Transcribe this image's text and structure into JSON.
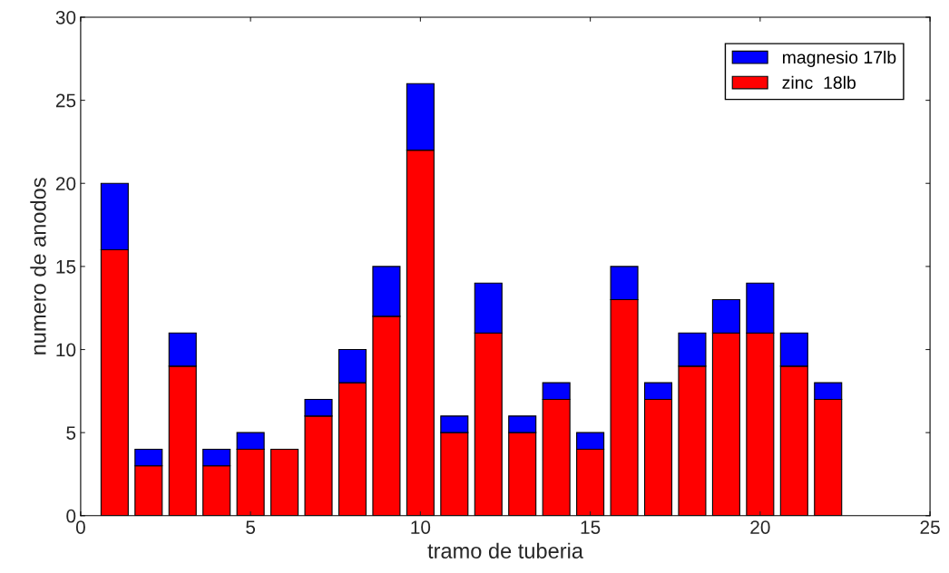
{
  "chart_data": {
    "type": "bar",
    "stacked": true,
    "xlabel": "tramo de tuberia",
    "ylabel": "numero de anodos",
    "x": [
      1,
      2,
      3,
      4,
      5,
      6,
      7,
      8,
      9,
      10,
      11,
      12,
      13,
      14,
      15,
      16,
      17,
      18,
      19,
      20,
      21,
      22
    ],
    "series": [
      {
        "name": "zinc  18lb",
        "color": "#ff0000",
        "values": [
          16,
          3,
          9,
          3,
          4,
          4,
          6,
          8,
          12,
          22,
          5,
          11,
          5,
          7,
          4,
          13,
          7,
          9,
          11,
          11,
          9,
          7
        ]
      },
      {
        "name": "magnesio 17lb",
        "color": "#0000ff",
        "values": [
          4,
          1,
          2,
          1,
          1,
          0,
          1,
          2,
          3,
          4,
          1,
          3,
          1,
          1,
          1,
          2,
          1,
          2,
          2,
          3,
          2,
          1
        ]
      }
    ],
    "xlim": [
      0,
      25
    ],
    "xticks": [
      0,
      5,
      10,
      15,
      20,
      25
    ],
    "ylim": [
      0,
      30
    ],
    "yticks": [
      0,
      5,
      10,
      15,
      20,
      25,
      30
    ],
    "legend": "top right",
    "grid": false
  }
}
